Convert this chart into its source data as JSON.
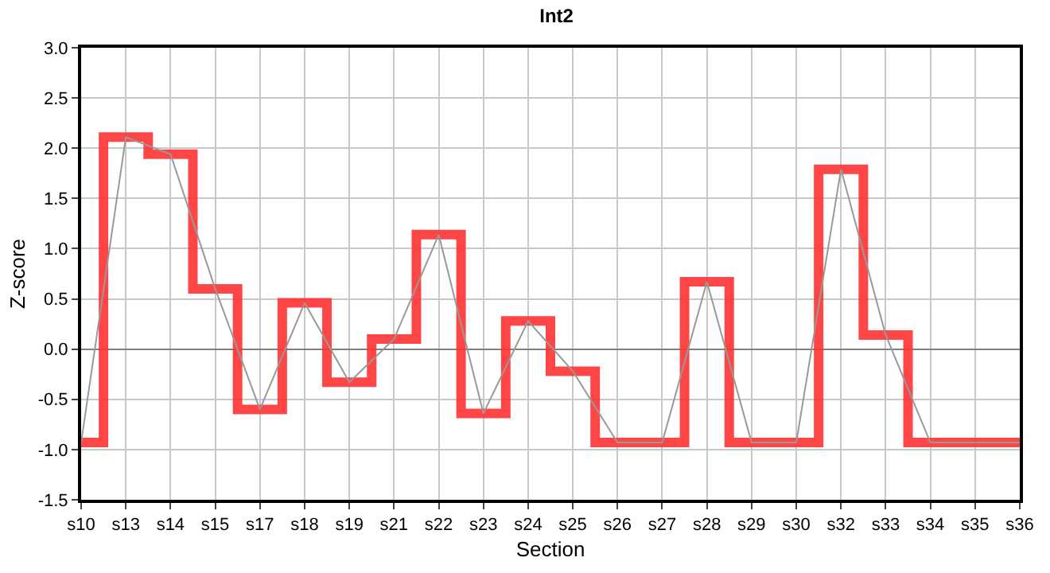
{
  "chart_data": {
    "type": "step",
    "title": "Int2",
    "xlabel": "Section",
    "ylabel": "Z-score",
    "categories": [
      "s10",
      "s13",
      "s14",
      "s15",
      "s17",
      "s18",
      "s19",
      "s21",
      "s22",
      "s23",
      "s24",
      "s25",
      "s26",
      "s27",
      "s28",
      "s29",
      "s30",
      "s32",
      "s33",
      "s34",
      "s35",
      "s36"
    ],
    "series": [
      {
        "color": "#ff3333",
        "values": [
          -0.93,
          2.11,
          1.94,
          0.6,
          -0.6,
          0.46,
          -0.33,
          0.1,
          1.14,
          -0.64,
          0.28,
          -0.22,
          -0.93,
          -0.93,
          0.67,
          -0.93,
          -0.93,
          1.79,
          0.14,
          -0.93,
          -0.93,
          -0.93
        ]
      },
      {
        "type": "line",
        "color": "#999999",
        "values": [
          -0.93,
          2.11,
          1.94,
          0.6,
          -0.6,
          0.46,
          -0.33,
          0.1,
          1.14,
          -0.64,
          0.28,
          -0.22,
          -0.93,
          -0.93,
          0.67,
          -0.93,
          -0.93,
          1.79,
          0.14,
          -0.93,
          -0.93,
          -0.93
        ]
      }
    ],
    "ylim": [
      -1.5,
      3.0
    ],
    "yticks": [
      {
        "value": -1.5,
        "label": "-1.5"
      },
      {
        "value": -1.0,
        "label": "-1.0"
      },
      {
        "value": -0.5,
        "label": "-0.5"
      },
      {
        "value": 0,
        "label": "0.0"
      },
      {
        "value": 0.5,
        "label": "0.5"
      },
      {
        "value": 1.0,
        "label": "1.0"
      },
      {
        "value": 1.5,
        "label": "1.5"
      },
      {
        "value": 2.0,
        "label": "2.0"
      },
      {
        "value": 2.5,
        "label": "2.5"
      },
      {
        "value": 3.0,
        "label": "3.0"
      }
    ],
    "grid": true,
    "legend": false
  }
}
